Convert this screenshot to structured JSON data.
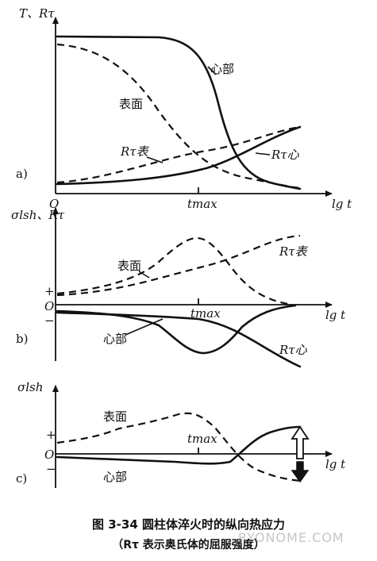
{
  "panels": {
    "a": {
      "panel_label": "a)",
      "ylabel": "T、Rτ",
      "origin": "O",
      "xlabel": "lg t",
      "tick_label": "tmax",
      "curve_labels": {
        "core": "心部",
        "surface": "表面",
        "rt_surface": "Rτ表",
        "rt_core": "Rτ心"
      }
    },
    "b": {
      "panel_label": "b)",
      "ylabel": "σlsh、Rτ",
      "origin": "O",
      "plus": "+",
      "minus": "−",
      "xlabel": "lg t",
      "tick_label": "tmax",
      "curve_labels": {
        "surface": "表面",
        "core": "心部",
        "rt_surface": "Rτ表",
        "rt_core": "Rτ心"
      }
    },
    "c": {
      "panel_label": "c)",
      "ylabel": "σlsh",
      "origin": "O",
      "plus": "+",
      "minus": "−",
      "xlabel": "lg t",
      "tick_label": "tmax",
      "curve_labels": {
        "surface": "表面",
        "core": "心部"
      }
    }
  },
  "caption": {
    "title": "图 3-34   圆柱体淬火时的纵向热应力",
    "note": "（Rτ 表示奥氏体的屈服强度）"
  },
  "watermark": "RYONOME.COM"
}
